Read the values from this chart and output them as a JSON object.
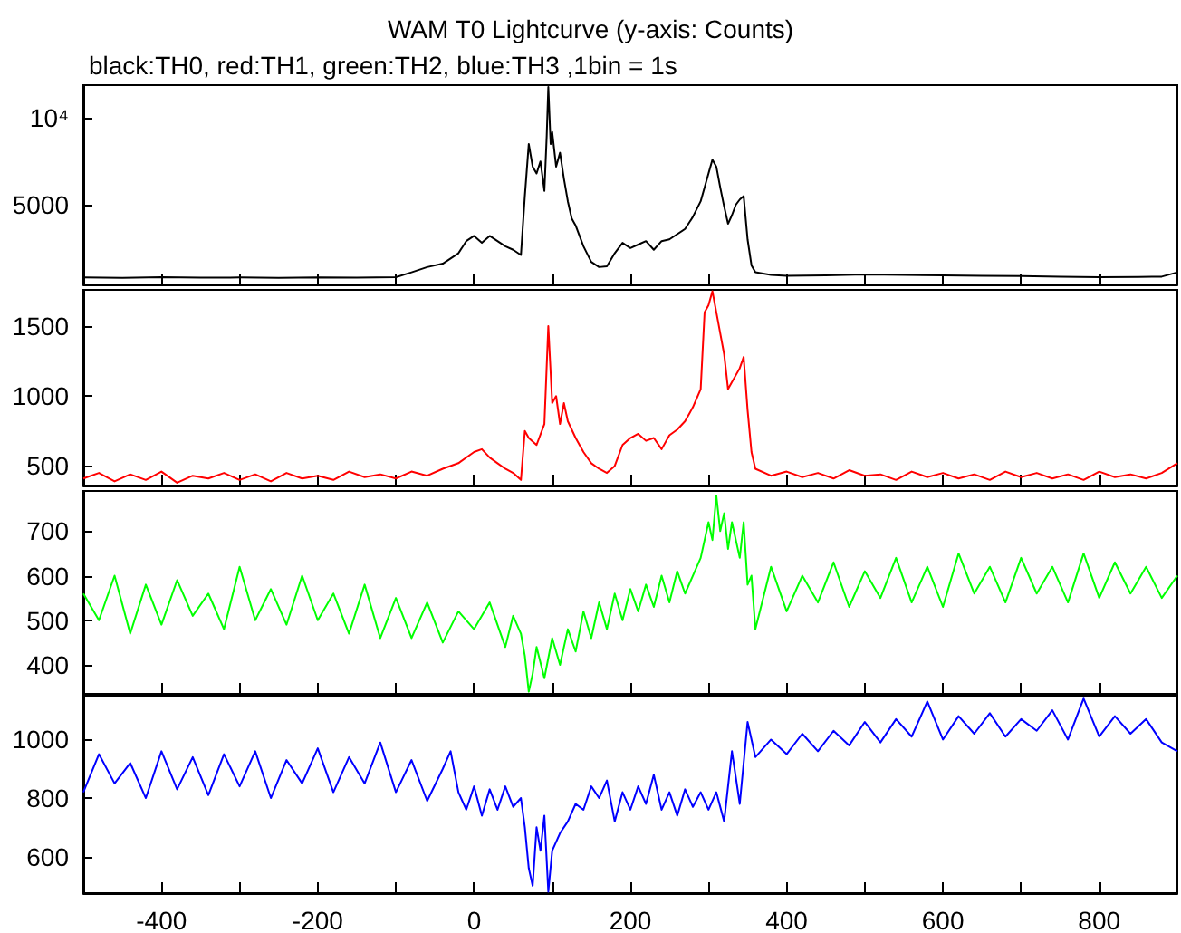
{
  "chart_data": [
    {
      "type": "line",
      "title": "WAM T0 Lightcurve (y-axis: Counts)",
      "subtitle": "black:TH0, red:TH1, green:TH2, blue:TH3 ,1bin = 1s",
      "xlim": [
        -500,
        900
      ],
      "xticks": [
        {
          "value": -300,
          "label": null
        },
        {
          "value": -100,
          "label": null
        },
        {
          "value": 100,
          "label": null
        },
        {
          "value": 300,
          "label": null
        },
        {
          "value": 500,
          "label": null
        },
        {
          "value": 700,
          "label": null
        },
        -400,
        -200,
        0,
        200,
        400,
        600,
        800
      ],
      "ylim": [
        400,
        11900
      ],
      "yticks": [
        5000,
        {
          "value": 10000,
          "label": "10⁴"
        }
      ],
      "tick_labels": "y",
      "grid": false,
      "marker": "none",
      "line_style": "solid",
      "series": [
        {
          "color": "#000000",
          "x": [
            -500,
            -450,
            -400,
            -350,
            -300,
            -250,
            -200,
            -150,
            -100,
            -80,
            -60,
            -40,
            -20,
            -10,
            0,
            10,
            20,
            30,
            40,
            50,
            60,
            65,
            70,
            75,
            80,
            85,
            90,
            93,
            95,
            98,
            100,
            105,
            110,
            115,
            120,
            125,
            130,
            140,
            150,
            160,
            170,
            180,
            190,
            200,
            210,
            220,
            230,
            240,
            250,
            260,
            270,
            280,
            290,
            300,
            305,
            310,
            315,
            320,
            325,
            330,
            335,
            340,
            345,
            350,
            355,
            360,
            380,
            400,
            450,
            500,
            550,
            600,
            650,
            700,
            750,
            800,
            850,
            880,
            900
          ],
          "values": [
            800,
            780,
            820,
            790,
            800,
            780,
            810,
            790,
            820,
            1100,
            1400,
            1600,
            2200,
            2900,
            3200,
            2800,
            3200,
            2900,
            2600,
            2400,
            2100,
            5500,
            8500,
            7200,
            6800,
            7500,
            5800,
            9000,
            11800,
            8500,
            9200,
            7200,
            8000,
            6500,
            5200,
            4200,
            3800,
            2600,
            1700,
            1400,
            1450,
            2200,
            2800,
            2500,
            2700,
            2900,
            2400,
            2900,
            3000,
            3300,
            3600,
            4300,
            5200,
            6800,
            7600,
            7200,
            6000,
            4900,
            3900,
            4400,
            5000,
            5300,
            5500,
            3000,
            1500,
            1100,
            950,
            900,
            920,
            980,
            950,
            920,
            900,
            880,
            850,
            820,
            830,
            850,
            1100
          ]
        }
      ]
    },
    {
      "type": "line",
      "xlim": [
        -500,
        900
      ],
      "xticks": [
        {
          "value": -300,
          "label": null
        },
        {
          "value": -100,
          "label": null
        },
        {
          "value": 100,
          "label": null
        },
        {
          "value": 300,
          "label": null
        },
        {
          "value": 500,
          "label": null
        },
        {
          "value": 700,
          "label": null
        },
        -400,
        -200,
        0,
        200,
        400,
        600,
        800
      ],
      "ylim": [
        360,
        1760
      ],
      "yticks": [
        500,
        1000,
        1500
      ],
      "tick_labels": "y",
      "grid": false,
      "marker": "none",
      "line_style": "solid",
      "series": [
        {
          "color": "#ff0000",
          "x": [
            -500,
            -480,
            -460,
            -440,
            -420,
            -400,
            -380,
            -360,
            -340,
            -320,
            -300,
            -280,
            -260,
            -240,
            -220,
            -200,
            -180,
            -160,
            -140,
            -120,
            -100,
            -80,
            -60,
            -40,
            -20,
            0,
            10,
            20,
            30,
            40,
            50,
            60,
            65,
            70,
            80,
            90,
            95,
            100,
            105,
            110,
            115,
            120,
            130,
            140,
            150,
            160,
            170,
            180,
            190,
            200,
            210,
            220,
            230,
            240,
            250,
            260,
            270,
            280,
            290,
            295,
            300,
            305,
            310,
            315,
            320,
            325,
            330,
            335,
            340,
            345,
            350,
            355,
            360,
            380,
            400,
            420,
            440,
            460,
            480,
            500,
            520,
            540,
            560,
            580,
            600,
            620,
            640,
            660,
            680,
            700,
            720,
            740,
            760,
            780,
            800,
            820,
            840,
            860,
            880,
            900
          ],
          "values": [
            410,
            450,
            390,
            440,
            400,
            460,
            380,
            430,
            410,
            450,
            400,
            440,
            390,
            450,
            410,
            430,
            400,
            460,
            420,
            440,
            410,
            460,
            430,
            480,
            520,
            600,
            620,
            560,
            520,
            480,
            450,
            400,
            750,
            700,
            650,
            800,
            1500,
            950,
            1000,
            800,
            950,
            820,
            700,
            600,
            520,
            480,
            450,
            500,
            650,
            700,
            730,
            680,
            700,
            620,
            720,
            760,
            820,
            920,
            1050,
            1600,
            1650,
            1750,
            1600,
            1450,
            1300,
            1050,
            1100,
            1150,
            1200,
            1280,
            900,
            600,
            480,
            430,
            460,
            420,
            450,
            410,
            470,
            430,
            440,
            400,
            460,
            420,
            450,
            410,
            440,
            400,
            460,
            420,
            450,
            410,
            440,
            400,
            460,
            420,
            440,
            410,
            450,
            520
          ]
        }
      ]
    },
    {
      "type": "line",
      "xlim": [
        -500,
        900
      ],
      "xticks": [
        {
          "value": -300,
          "label": null
        },
        {
          "value": -100,
          "label": null
        },
        {
          "value": 100,
          "label": null
        },
        {
          "value": 300,
          "label": null
        },
        {
          "value": 500,
          "label": null
        },
        {
          "value": 700,
          "label": null
        },
        -400,
        -200,
        0,
        200,
        400,
        600,
        800
      ],
      "ylim": [
        335,
        790
      ],
      "yticks": [
        400,
        500,
        600,
        700
      ],
      "tick_labels": "y",
      "grid": false,
      "marker": "none",
      "line_style": "solid",
      "series": [
        {
          "color": "#00ff00",
          "x": [
            -500,
            -480,
            -460,
            -440,
            -420,
            -400,
            -380,
            -360,
            -340,
            -320,
            -300,
            -280,
            -260,
            -240,
            -220,
            -200,
            -180,
            -160,
            -140,
            -120,
            -100,
            -80,
            -60,
            -40,
            -20,
            0,
            20,
            40,
            50,
            60,
            65,
            70,
            75,
            80,
            90,
            100,
            110,
            120,
            130,
            140,
            150,
            160,
            170,
            180,
            190,
            200,
            210,
            220,
            230,
            240,
            250,
            260,
            270,
            280,
            290,
            300,
            305,
            310,
            315,
            320,
            325,
            330,
            340,
            345,
            350,
            355,
            360,
            380,
            400,
            420,
            440,
            460,
            480,
            500,
            520,
            540,
            560,
            580,
            600,
            620,
            640,
            660,
            680,
            700,
            720,
            740,
            760,
            780,
            800,
            820,
            840,
            860,
            880,
            900
          ],
          "values": [
            560,
            500,
            600,
            470,
            580,
            490,
            590,
            510,
            560,
            480,
            620,
            500,
            570,
            490,
            600,
            500,
            560,
            470,
            580,
            460,
            550,
            460,
            540,
            450,
            520,
            480,
            540,
            440,
            510,
            470,
            420,
            340,
            380,
            440,
            370,
            460,
            400,
            480,
            430,
            520,
            460,
            540,
            480,
            560,
            500,
            570,
            520,
            580,
            530,
            600,
            540,
            610,
            560,
            600,
            640,
            720,
            680,
            780,
            700,
            740,
            660,
            720,
            640,
            720,
            580,
            600,
            480,
            620,
            520,
            600,
            540,
            630,
            530,
            610,
            550,
            640,
            540,
            620,
            530,
            650,
            560,
            620,
            540,
            640,
            560,
            620,
            540,
            650,
            550,
            630,
            560,
            620,
            550,
            600
          ]
        }
      ]
    },
    {
      "type": "line",
      "xlim": [
        -500,
        900
      ],
      "xticks": [
        {
          "value": -300,
          "label": null
        },
        {
          "value": -100,
          "label": null
        },
        {
          "value": 100,
          "label": null
        },
        {
          "value": 300,
          "label": null
        },
        {
          "value": 500,
          "label": null
        },
        {
          "value": 700,
          "label": null
        },
        -400,
        -200,
        0,
        200,
        400,
        600,
        800
      ],
      "ylim": [
        475,
        1150
      ],
      "yticks": [
        600,
        800,
        1000
      ],
      "grid": false,
      "marker": "none",
      "line_style": "solid",
      "series": [
        {
          "color": "#0000ff",
          "x": [
            -500,
            -480,
            -460,
            -440,
            -420,
            -400,
            -380,
            -360,
            -340,
            -320,
            -300,
            -280,
            -260,
            -240,
            -220,
            -200,
            -180,
            -160,
            -140,
            -120,
            -100,
            -80,
            -60,
            -40,
            -30,
            -20,
            -10,
            0,
            10,
            20,
            30,
            40,
            50,
            60,
            65,
            70,
            75,
            80,
            85,
            90,
            95,
            100,
            110,
            120,
            130,
            140,
            150,
            160,
            170,
            180,
            190,
            200,
            210,
            220,
            230,
            240,
            250,
            260,
            270,
            280,
            290,
            300,
            310,
            320,
            330,
            340,
            350,
            360,
            380,
            400,
            420,
            440,
            460,
            480,
            500,
            520,
            540,
            560,
            580,
            600,
            620,
            640,
            660,
            680,
            700,
            720,
            740,
            760,
            780,
            800,
            820,
            840,
            860,
            880,
            900
          ],
          "values": [
            820,
            950,
            850,
            920,
            800,
            960,
            830,
            940,
            810,
            950,
            840,
            960,
            800,
            930,
            850,
            970,
            820,
            940,
            850,
            990,
            820,
            930,
            790,
            900,
            960,
            820,
            760,
            840,
            740,
            830,
            760,
            840,
            770,
            800,
            700,
            560,
            500,
            700,
            620,
            740,
            480,
            620,
            680,
            720,
            780,
            760,
            840,
            800,
            860,
            720,
            820,
            760,
            840,
            780,
            880,
            760,
            820,
            740,
            830,
            770,
            820,
            760,
            820,
            720,
            960,
            780,
            1060,
            940,
            1000,
            950,
            1020,
            960,
            1030,
            980,
            1060,
            990,
            1070,
            1010,
            1130,
            1000,
            1080,
            1020,
            1090,
            1010,
            1070,
            1030,
            1100,
            1000,
            1140,
            1010,
            1080,
            1020,
            1070,
            990,
            960
          ]
        }
      ]
    }
  ]
}
